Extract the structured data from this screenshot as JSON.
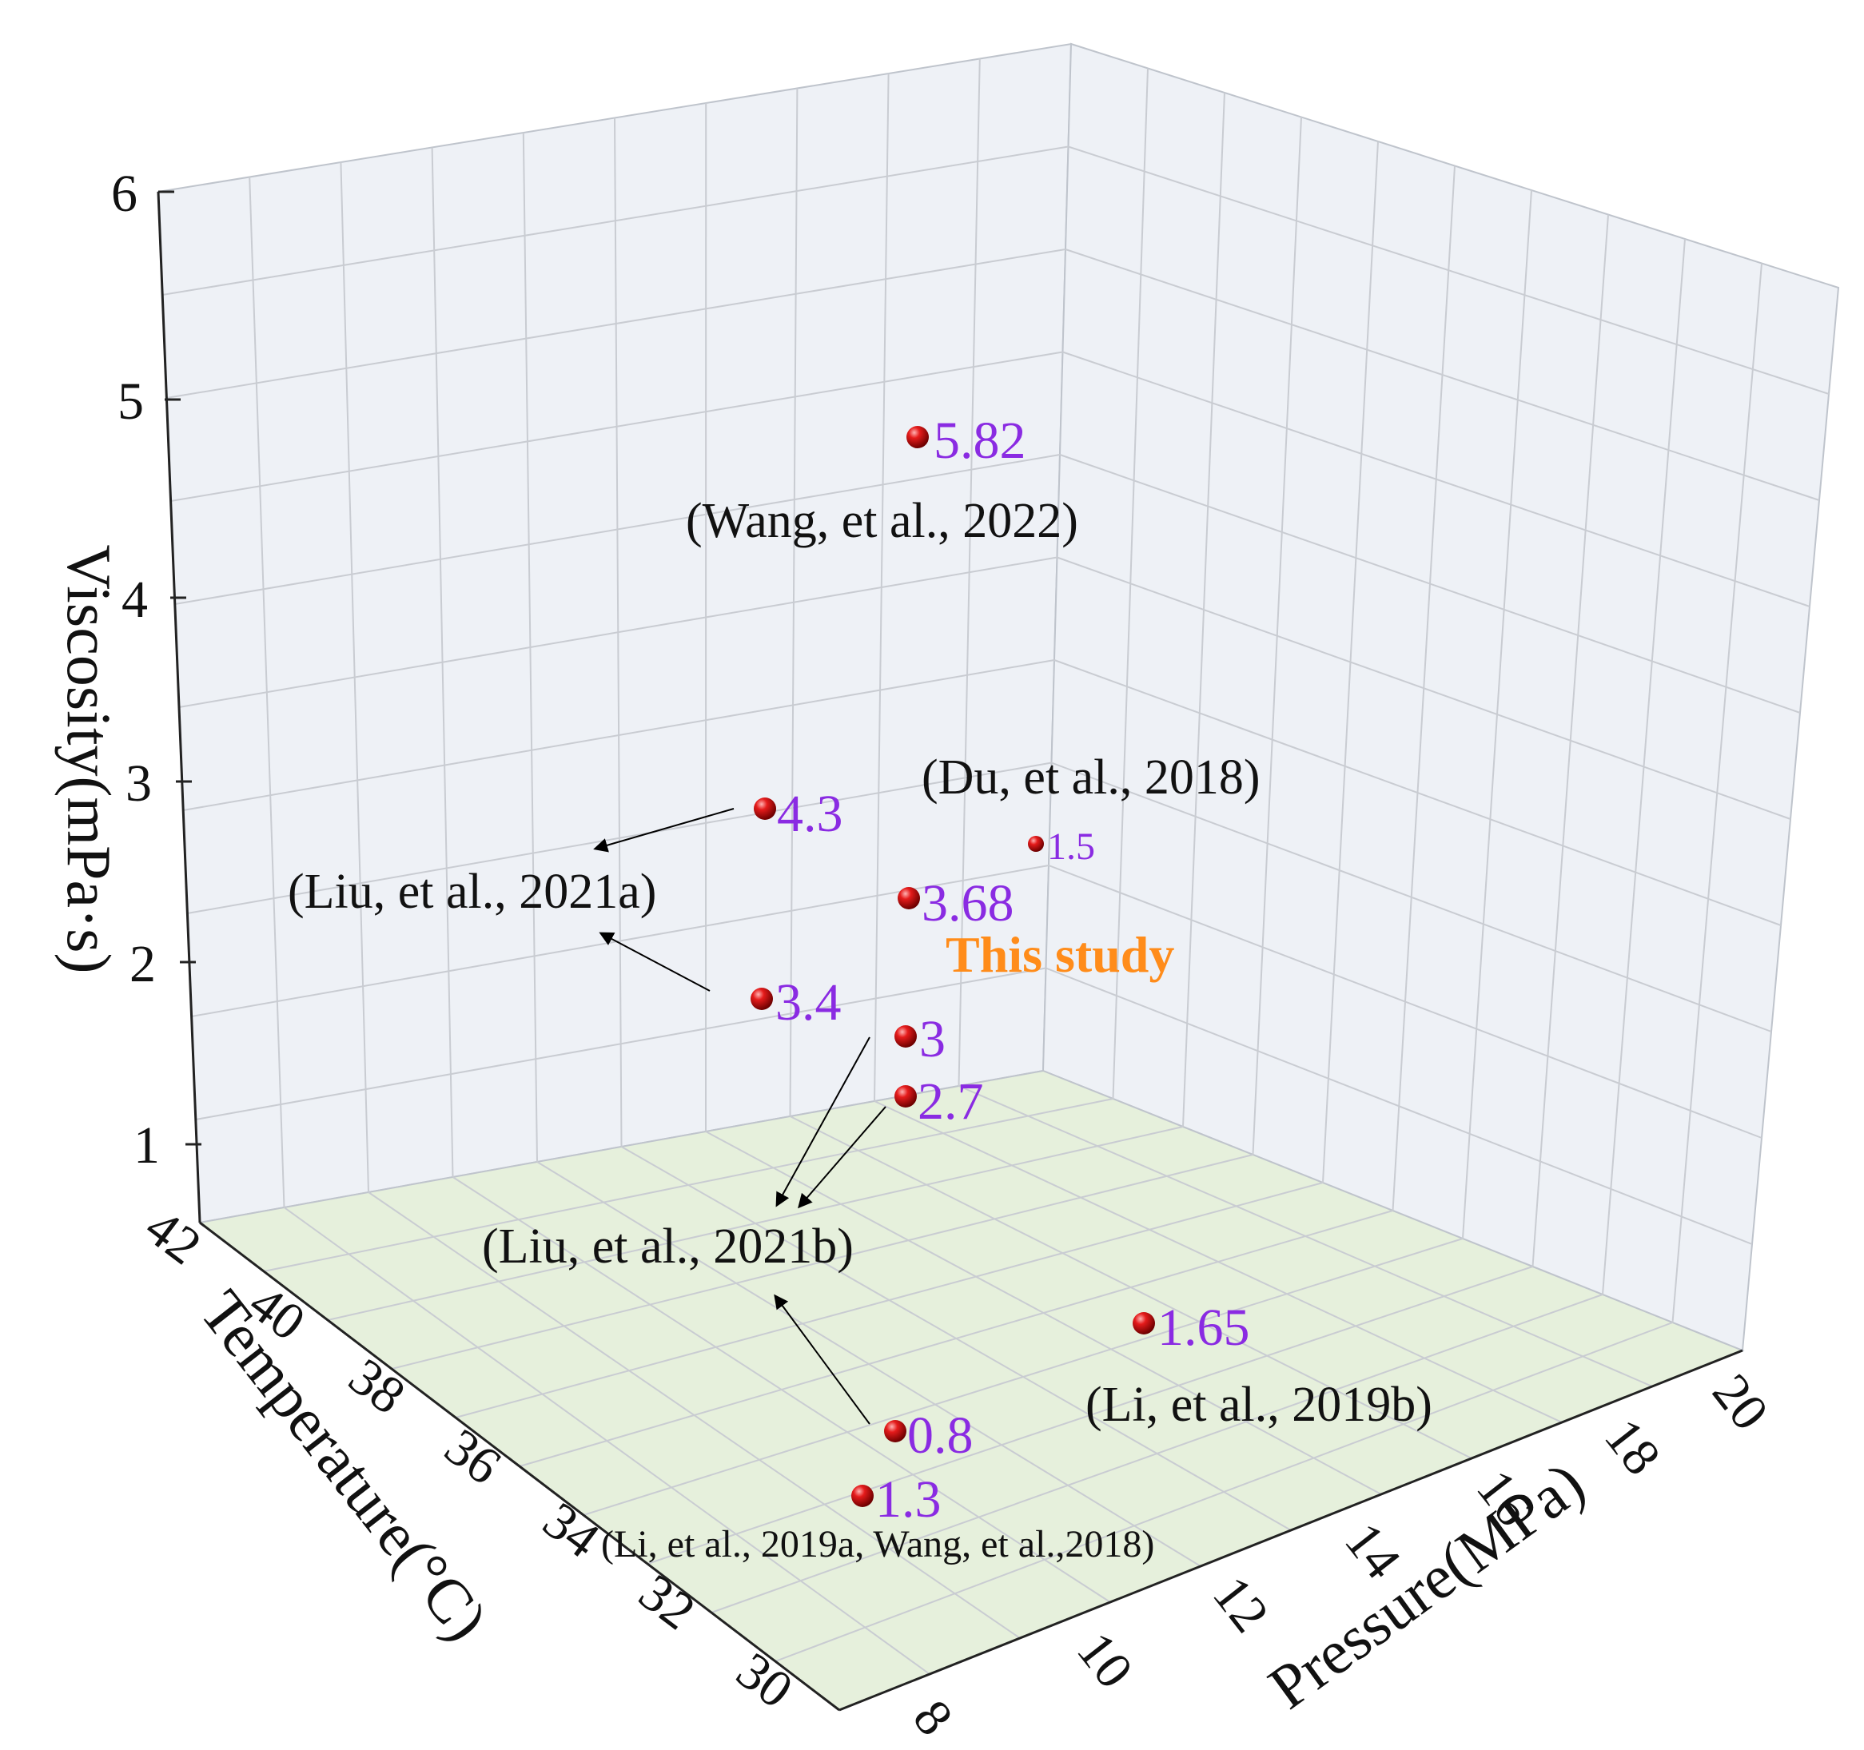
{
  "chart_data": {
    "type": "scatter3d",
    "axes": {
      "x": {
        "label": "Pressure(MPa)",
        "ticks": [
          "8",
          "10",
          "12",
          "14",
          "16",
          "18",
          "20"
        ]
      },
      "y": {
        "label": "Temperature(°C)",
        "ticks": [
          "30",
          "32",
          "34",
          "36",
          "38",
          "40",
          "42"
        ]
      },
      "z": {
        "label": "Viscosity(mPa·s)",
        "ticks": [
          "1",
          "2",
          "3",
          "4",
          "5",
          "6"
        ]
      }
    },
    "points": [
      {
        "label": "5.82",
        "value": 5.82
      },
      {
        "label": "4.3",
        "value": 4.3
      },
      {
        "label": "3.68",
        "value": 3.68
      },
      {
        "label": "1.5",
        "value": 1.5
      },
      {
        "label": "3.4",
        "value": 3.4
      },
      {
        "label": "3",
        "value": 3
      },
      {
        "label": "2.7",
        "value": 2.7
      },
      {
        "label": "1.65",
        "value": 1.65
      },
      {
        "label": "0.8",
        "value": 0.8
      },
      {
        "label": "1.3",
        "value": 1.3
      }
    ],
    "annotations": [
      "(Wang, et al., 2022)",
      "(Du, et al., 2018)",
      "(Liu, et al., 2021a)",
      "This study",
      "(Liu, et al., 2021b)",
      "(Li, et al., 2019b)",
      "(Li, et al., 2019a, Wang, et al.,2018)"
    ]
  },
  "colors": {
    "value_label": "#8a2be2",
    "highlight": "#ff8c1a",
    "point": "#d01010",
    "floor": "#e6f0dc",
    "walls": "#eef1f6"
  }
}
